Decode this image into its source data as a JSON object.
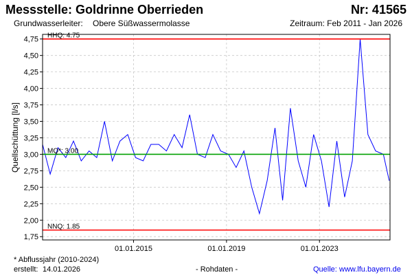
{
  "header": {
    "title": "Messstelle: Goldrinne Oberrieden",
    "number": "Nr: 41565",
    "aquifer_label": "Grundwasserleiter:",
    "aquifer": "Obere Süßwassermolasse",
    "period": "Zeitraum: Feb 2011 - Jan 2026"
  },
  "footer": {
    "note": "* Abflussjahr (2010-2024)",
    "created_label": "erstellt:",
    "created_date": "14.01.2026",
    "rawdata": "- Rohdaten -",
    "source_label": "Quelle:",
    "source_url": "www.lfu.bayern.de"
  },
  "colors": {
    "series": "#0000ff",
    "hhq": "#ff0000",
    "nnq": "#ff0000",
    "mq": "#00a000",
    "grid": "#c8c8c8"
  },
  "chart_data": {
    "type": "line",
    "ylabel": "Quellschüttung [l/s]",
    "xlabel": "",
    "ylim": [
      1.7,
      4.82
    ],
    "yticks": [
      "1,75",
      "2,00",
      "2,25",
      "2,50",
      "2,75",
      "3,00",
      "3,25",
      "3,50",
      "3,75",
      "4,00",
      "4,25",
      "4,50",
      "4,75"
    ],
    "xlim": [
      "2011-02-01",
      "2026-01-14"
    ],
    "xticks": [
      "01.01.2015",
      "01.01.2019",
      "01.01.2023"
    ],
    "grid": true,
    "reference_lines": [
      {
        "label": "HHQ: 4.75",
        "value": 4.75
      },
      {
        "label": "MQ*: 3.00",
        "value": 3.0
      },
      {
        "label": "NNQ: 1.85",
        "value": 1.85
      }
    ],
    "series": [
      {
        "x": [
          "2011-02",
          "2011-06",
          "2011-10",
          "2012-02",
          "2012-06",
          "2012-10",
          "2013-02",
          "2013-06",
          "2013-10",
          "2014-02",
          "2014-06",
          "2014-10",
          "2015-02",
          "2015-06",
          "2015-10",
          "2016-02",
          "2016-06",
          "2016-10",
          "2017-02",
          "2017-06",
          "2017-10",
          "2018-02",
          "2018-06",
          "2018-10",
          "2019-02",
          "2019-06",
          "2019-10",
          "2020-02",
          "2020-06",
          "2020-10",
          "2021-02",
          "2021-06",
          "2021-10",
          "2022-02",
          "2022-06",
          "2022-10",
          "2023-02",
          "2023-06",
          "2023-10",
          "2024-02",
          "2024-06",
          "2024-10",
          "2025-02",
          "2025-06",
          "2025-10",
          "2026-01"
        ],
        "y": [
          3.15,
          2.7,
          3.1,
          2.95,
          3.2,
          2.9,
          3.05,
          2.95,
          3.5,
          2.9,
          3.2,
          3.3,
          2.95,
          2.9,
          3.15,
          3.15,
          3.05,
          3.3,
          3.1,
          3.6,
          3.0,
          2.95,
          3.3,
          3.05,
          3.0,
          2.8,
          3.05,
          2.5,
          2.1,
          2.6,
          3.4,
          2.3,
          3.7,
          2.9,
          2.5,
          3.3,
          2.9,
          2.2,
          3.2,
          2.35,
          2.9,
          4.75,
          3.3,
          3.05,
          3.0,
          2.6
        ]
      }
    ]
  }
}
